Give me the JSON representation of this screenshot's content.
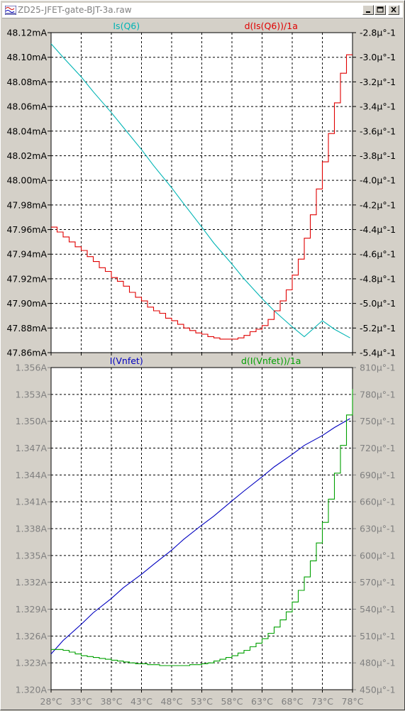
{
  "window": {
    "title": "ZD25-JFET-gate-BJT-3a.raw",
    "controls": [
      "minimize",
      "maximize",
      "close"
    ]
  },
  "chart_data": [
    {
      "type": "line",
      "pane": "top",
      "x_ticks": [
        "28°C",
        "33°C",
        "38°C",
        "43°C",
        "48°C",
        "53°C",
        "58°C",
        "63°C",
        "68°C",
        "73°C",
        "78°C"
      ],
      "xlim": [
        28,
        78
      ],
      "left_axis": {
        "ticks": [
          "48.12mA",
          "48.10mA",
          "48.08mA",
          "48.06mA",
          "48.04mA",
          "48.02mA",
          "48.00mA",
          "47.98mA",
          "47.96mA",
          "47.94mA",
          "47.92mA",
          "47.90mA",
          "47.88mA",
          "47.86mA"
        ],
        "ylim": [
          47.86,
          48.12
        ],
        "color": "#000000"
      },
      "right_axis": {
        "ticks": [
          "-2.8µ°-1",
          "-3.0µ°-1",
          "-3.2µ°-1",
          "-3.4µ°-1",
          "-3.6µ°-1",
          "-3.8µ°-1",
          "-4.0µ°-1",
          "-4.2µ°-1",
          "-4.4µ°-1",
          "-4.6µ°-1",
          "-4.8µ°-1",
          "-5.0µ°-1",
          "-5.2µ°-1",
          "-5.4µ°-1"
        ],
        "ylim": [
          -5.4,
          -2.8
        ],
        "color": "#000000"
      },
      "series": [
        {
          "name": "Is(Q6)",
          "axis": "left",
          "color": "#00b4b4",
          "x": [
            28,
            30,
            33,
            35,
            38,
            40,
            43,
            45,
            48,
            50,
            53,
            55,
            58,
            60,
            63,
            65,
            68,
            70,
            73,
            75,
            77.6
          ],
          "y": [
            48.111,
            48.1,
            48.084,
            48.072,
            48.055,
            48.043,
            48.025,
            48.012,
            47.994,
            47.981,
            47.962,
            47.949,
            47.932,
            47.92,
            47.904,
            47.894,
            47.881,
            47.873,
            47.886,
            47.879,
            47.872
          ]
        },
        {
          "name": "d(Is(Q6))/1a",
          "axis": "right",
          "color": "#e00000",
          "step": true,
          "x": [
            28,
            29,
            30,
            31,
            32,
            33,
            34,
            35,
            36,
            37,
            38,
            39,
            40,
            41,
            42,
            43,
            44,
            45,
            46,
            47,
            48,
            49,
            50,
            51,
            52,
            53,
            54,
            55,
            56,
            57,
            58,
            59,
            60,
            61,
            62,
            63,
            64,
            65,
            66,
            67,
            68,
            69,
            70,
            71,
            72,
            73,
            74,
            75,
            76,
            77,
            78
          ],
          "y": [
            -4.38,
            -4.42,
            -4.46,
            -4.5,
            -4.54,
            -4.57,
            -4.62,
            -4.66,
            -4.71,
            -4.74,
            -4.79,
            -4.82,
            -4.86,
            -4.91,
            -4.95,
            -4.98,
            -5.03,
            -5.06,
            -5.08,
            -5.12,
            -5.14,
            -5.17,
            -5.2,
            -5.22,
            -5.24,
            -5.25,
            -5.27,
            -5.28,
            -5.29,
            -5.29,
            -5.29,
            -5.28,
            -5.26,
            -5.23,
            -5.21,
            -5.18,
            -5.13,
            -5.06,
            -4.98,
            -4.89,
            -4.77,
            -4.64,
            -4.47,
            -4.28,
            -4.07,
            -3.85,
            -3.62,
            -3.37,
            -3.13,
            -2.98,
            -2.98
          ]
        }
      ]
    },
    {
      "type": "line",
      "pane": "bottom",
      "x_ticks": [
        "28°C",
        "33°C",
        "38°C",
        "43°C",
        "48°C",
        "53°C",
        "58°C",
        "63°C",
        "68°C",
        "73°C",
        "78°C"
      ],
      "xlim": [
        28,
        78
      ],
      "left_axis": {
        "ticks": [
          "1.356A",
          "1.353A",
          "1.350A",
          "1.347A",
          "1.344A",
          "1.341A",
          "1.338A",
          "1.335A",
          "1.332A",
          "1.329A",
          "1.326A",
          "1.323A",
          "1.320A"
        ],
        "ylim": [
          1.32,
          1.356
        ],
        "color": "#808080"
      },
      "right_axis": {
        "ticks": [
          "810µ°-1",
          "780µ°-1",
          "750µ°-1",
          "720µ°-1",
          "690µ°-1",
          "660µ°-1",
          "630µ°-1",
          "600µ°-1",
          "570µ°-1",
          "540µ°-1",
          "510µ°-1",
          "480µ°-1",
          "450µ°-1"
        ],
        "ylim": [
          450,
          810
        ],
        "color": "#808080"
      },
      "series": [
        {
          "name": "I(Vnfet)",
          "axis": "left",
          "color": "#0000c0",
          "x": [
            28,
            30,
            33,
            35,
            38,
            40,
            43,
            45,
            48,
            50,
            53,
            55,
            58,
            60,
            63,
            65,
            68,
            70,
            73,
            75,
            77.6
          ],
          "y": [
            1.324,
            1.3255,
            1.3273,
            1.3286,
            1.3302,
            1.3314,
            1.3329,
            1.334,
            1.3356,
            1.3368,
            1.3384,
            1.3394,
            1.3411,
            1.3422,
            1.3438,
            1.3449,
            1.3463,
            1.3473,
            1.3484,
            1.3493,
            1.3503
          ]
        },
        {
          "name": "d(I(Vnfet))/1a",
          "axis": "right",
          "color": "#00a000",
          "step": true,
          "x": [
            28,
            29,
            30,
            31,
            32,
            33,
            34,
            35,
            36,
            37,
            38,
            39,
            40,
            41,
            42,
            43,
            44,
            45,
            46,
            47,
            48,
            49,
            50,
            51,
            52,
            53,
            54,
            55,
            56,
            57,
            58,
            59,
            60,
            61,
            62,
            63,
            64,
            65,
            66,
            67,
            68,
            69,
            70,
            71,
            72,
            73,
            74,
            75,
            76,
            77,
            78
          ],
          "y": [
            495,
            495,
            494,
            492,
            490,
            488,
            487,
            486,
            485,
            484,
            483,
            482,
            481,
            480,
            479,
            479,
            478,
            478,
            477,
            477,
            477,
            477,
            477,
            478,
            478,
            479,
            480,
            482,
            484,
            486,
            488,
            491,
            494,
            498,
            502,
            507,
            513,
            520,
            528,
            537,
            548,
            561,
            576,
            594,
            614,
            637,
            663,
            692,
            723,
            757,
            786
          ]
        }
      ]
    }
  ]
}
